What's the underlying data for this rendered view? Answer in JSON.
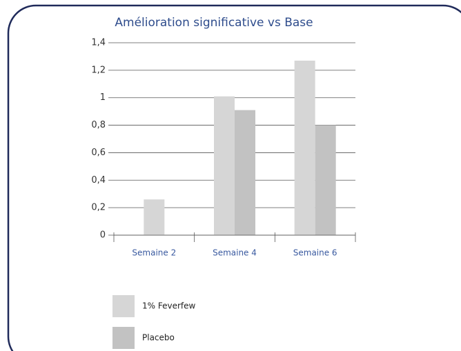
{
  "chart_data": {
    "type": "bar",
    "title": "Amélioration significative vs Base",
    "categories": [
      "Semaine 2",
      "Semaine 4",
      "Semaine 6"
    ],
    "series": [
      {
        "name": "1% Feverfew",
        "color": "#d6d6d6",
        "values": [
          0.26,
          1.01,
          1.27
        ]
      },
      {
        "name": "Placebo",
        "color": "#c2c2c2",
        "values": [
          null,
          0.91,
          0.8
        ]
      }
    ],
    "ylim": [
      0,
      1.4
    ],
    "yticks": [
      0,
      {
        "value": 0.2,
        "label": "0,2"
      },
      {
        "value": 0.4,
        "label": "0,4"
      },
      {
        "value": 0.6,
        "label": "0,6"
      },
      {
        "value": 0.8,
        "label": "0,8"
      },
      1,
      {
        "value": 1.2,
        "label": "1,2"
      },
      {
        "value": 1.4,
        "label": "1,4"
      }
    ],
    "grid": true
  }
}
